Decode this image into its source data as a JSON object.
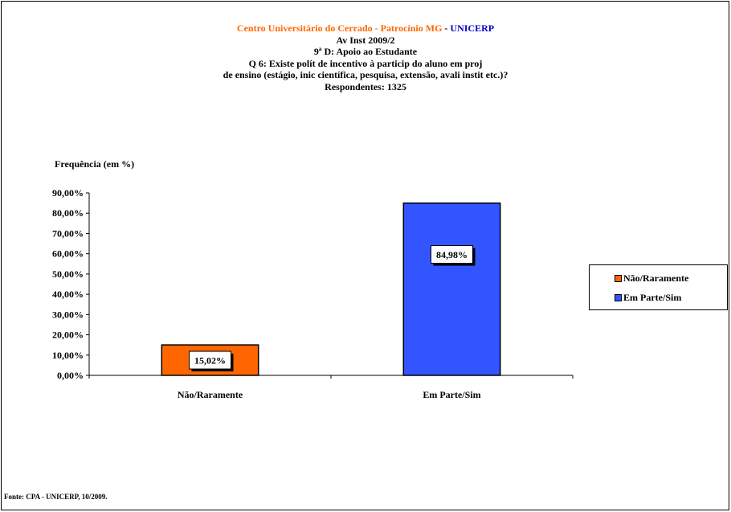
{
  "header": {
    "institution": "Centro Universitário do Cerrado - Patrocínio MG",
    "separator": " - ",
    "brand": "UNICERP",
    "line2": "Av Inst 2009/2",
    "line3": "9ª D: Apoio ao Estudante",
    "line4": "Q 6: Existe polít de incentivo à particip do aluno em proj",
    "line5": "de ensino (estágio, inic científica, pesquisa, extensão, avali instit etc.)?",
    "line6": "Respondentes: 1325"
  },
  "colors": {
    "institution": "#FF6600",
    "brand": "#0000CC",
    "nao": "#FF6600",
    "sim": "#3355FF"
  },
  "chart_data": {
    "type": "bar",
    "ylabel": "Frequência (em %)",
    "categories": [
      "Não/Raramente",
      "Em Parte/Sim"
    ],
    "values": [
      15.02,
      84.98
    ],
    "data_labels": [
      "15,02%",
      "84,98%"
    ],
    "yticks": [
      "0,00%",
      "10,00%",
      "20,00%",
      "30,00%",
      "40,00%",
      "50,00%",
      "60,00%",
      "70,00%",
      "80,00%",
      "90,00%"
    ],
    "ylim": [
      0,
      90
    ],
    "legend": [
      "Não/Raramente",
      "Em Parte/Sim"
    ],
    "legend_position": "right",
    "grid": false
  },
  "footer": {
    "source": "Fonte: CPA - UNICERP, 10/2009."
  }
}
